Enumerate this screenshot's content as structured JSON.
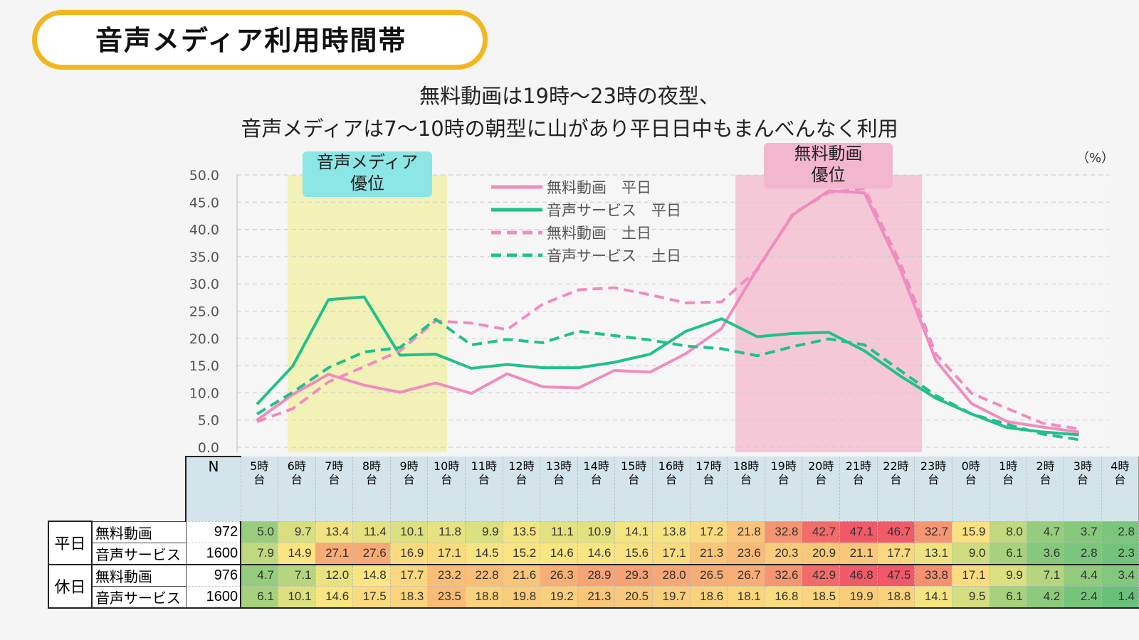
{
  "title": "音声メディア利用時間帯",
  "subtitle_1": "無料動画は19時～23時の夜型、",
  "subtitle_2": "音声メディアは7～10時の朝型に山があり平日日中もまんべんなく利用",
  "unit": "（%）",
  "highlight_audio": "音声メディア\n優位",
  "highlight_video": "無料動画\n優位",
  "table_header_n": "N",
  "groups": [
    "平日",
    "休日"
  ],
  "row_labels": [
    "無料動画",
    "音声サービス",
    "無料動画",
    "音声サービス"
  ],
  "n_values": [
    "972",
    "1600",
    "976",
    "1600"
  ],
  "colors": {
    "video": "#f08cbf",
    "audio": "#22c08a",
    "audio_band": "#f2f2b8",
    "video_band": "#f5c8d8",
    "audio_tag": "#8de6e6",
    "video_tag": "#f2b6cf",
    "title_border": "#f2b71f"
  },
  "chart_data": {
    "type": "line",
    "categories": [
      "5時台",
      "6時台",
      "7時台",
      "8時台",
      "9時台",
      "10時台",
      "11時台",
      "12時台",
      "13時台",
      "14時台",
      "15時台",
      "16時台",
      "17時台",
      "18時台",
      "19時台",
      "20時台",
      "21時台",
      "22時台",
      "23時台",
      "0時台",
      "1時台",
      "2時台",
      "3時台",
      "4時台"
    ],
    "ylim": [
      0,
      50
    ],
    "yticks": [
      "0.0",
      "5.0",
      "10.0",
      "15.0",
      "20.0",
      "25.0",
      "30.0",
      "35.0",
      "40.0",
      "45.0",
      "50.0"
    ],
    "grid": true,
    "legend_position": "top-center",
    "series": [
      {
        "name": "無料動画　平日",
        "style": "solid",
        "color": "video",
        "values": [
          5.0,
          9.7,
          13.4,
          11.4,
          10.1,
          11.8,
          9.9,
          13.5,
          11.1,
          10.9,
          14.1,
          13.8,
          17.2,
          21.8,
          32.8,
          42.7,
          47.1,
          46.7,
          32.7,
          15.9,
          8.0,
          4.7,
          3.7,
          2.8
        ]
      },
      {
        "name": "音声サービス　平日",
        "style": "solid",
        "color": "audio",
        "values": [
          7.9,
          14.9,
          27.1,
          27.6,
          16.9,
          17.1,
          14.5,
          15.2,
          14.6,
          14.6,
          15.6,
          17.1,
          21.3,
          23.6,
          20.3,
          20.9,
          21.1,
          17.7,
          13.1,
          9.0,
          6.1,
          3.6,
          2.8,
          2.3
        ]
      },
      {
        "name": "無料動画　土日",
        "style": "dashed",
        "color": "video",
        "values": [
          4.7,
          7.1,
          12.0,
          14.8,
          17.7,
          23.2,
          22.8,
          21.6,
          26.3,
          28.9,
          29.3,
          28.0,
          26.5,
          26.7,
          32.6,
          42.9,
          46.8,
          47.5,
          33.8,
          17.1,
          9.9,
          7.1,
          4.4,
          3.4
        ]
      },
      {
        "name": "音声サービス　土日",
        "style": "dashed",
        "color": "audio",
        "values": [
          6.1,
          10.1,
          14.6,
          17.5,
          18.3,
          23.5,
          18.8,
          19.8,
          19.2,
          21.3,
          20.5,
          19.7,
          18.6,
          18.1,
          16.8,
          18.5,
          19.9,
          18.8,
          14.1,
          9.5,
          6.1,
          4.2,
          2.4,
          1.4
        ]
      }
    ]
  }
}
